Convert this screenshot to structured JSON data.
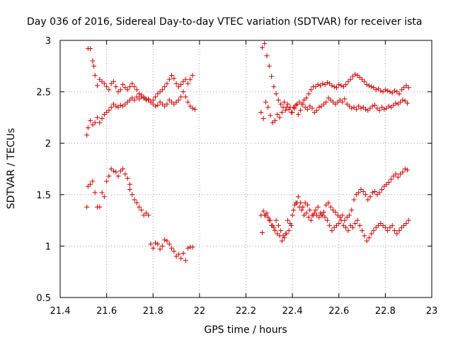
{
  "chart_data": {
    "type": "scatter",
    "title": "Day 036 of 2016, Sidereal Day-to-day VTEC variation (SDTVAR) for receiver ista",
    "xlabel": "GPS time / hours",
    "ylabel": "SDTVAR / TECUs",
    "xlim": [
      21.4,
      23.0
    ],
    "ylim": [
      0.5,
      3.0
    ],
    "xticks": [
      21.4,
      21.6,
      21.8,
      22.0,
      22.2,
      22.4,
      22.6,
      22.8,
      23.0
    ],
    "yticks": [
      0.5,
      1.0,
      1.5,
      2.0,
      2.5,
      3.0
    ],
    "xtick_labels": [
      "21.4",
      "21.6",
      "21.8",
      "22",
      "22.2",
      "22.4",
      "22.6",
      "22.8",
      "23"
    ],
    "ytick_labels": [
      "0.5",
      "1",
      "1.5",
      "2",
      "2.5",
      "3"
    ],
    "grid": true,
    "marker": "+",
    "color": "#cc0000",
    "series": [
      {
        "name": "segment-1-upper-a",
        "x": [
          21.52,
          21.53,
          21.54,
          21.545,
          21.55,
          21.56,
          21.57,
          21.58,
          21.59,
          21.6,
          21.61,
          21.62,
          21.63,
          21.64,
          21.65,
          21.66,
          21.67,
          21.68,
          21.69,
          21.7,
          21.71,
          21.72,
          21.73,
          21.74,
          21.75,
          21.76,
          21.77,
          21.78,
          21.79,
          21.8,
          21.81,
          21.82,
          21.83,
          21.84,
          21.85,
          21.86,
          21.87,
          21.88,
          21.89,
          21.9,
          21.91,
          21.92,
          21.93,
          21.94,
          21.95,
          21.96,
          21.97
        ],
        "y": [
          2.92,
          2.92,
          2.8,
          2.75,
          2.66,
          2.56,
          2.62,
          2.6,
          2.58,
          2.55,
          2.52,
          2.58,
          2.6,
          2.55,
          2.5,
          2.52,
          2.57,
          2.54,
          2.52,
          2.55,
          2.58,
          2.55,
          2.52,
          2.48,
          2.47,
          2.45,
          2.43,
          2.42,
          2.4,
          2.42,
          2.45,
          2.48,
          2.5,
          2.52,
          2.55,
          2.58,
          2.62,
          2.66,
          2.63,
          2.58,
          2.55,
          2.57,
          2.6,
          2.62,
          2.58,
          2.62,
          2.66
        ]
      },
      {
        "name": "segment-1-upper-b",
        "x": [
          21.515,
          21.52,
          21.53,
          21.54,
          21.55,
          21.56,
          21.57,
          21.58,
          21.59,
          21.6,
          21.61,
          21.62,
          21.63,
          21.64,
          21.65,
          21.66,
          21.67,
          21.68,
          21.69,
          21.7,
          21.71,
          21.72,
          21.73,
          21.74,
          21.75,
          21.76,
          21.77,
          21.78,
          21.79,
          21.8,
          21.81,
          21.82,
          21.83,
          21.84,
          21.85,
          21.86,
          21.87,
          21.88,
          21.89,
          21.9,
          21.91,
          21.92,
          21.93,
          21.94,
          21.95,
          21.96,
          21.97,
          21.98
        ],
        "y": [
          2.08,
          2.15,
          2.22,
          2.18,
          2.2,
          2.25,
          2.2,
          2.24,
          2.28,
          2.3,
          2.32,
          2.35,
          2.38,
          2.36,
          2.35,
          2.37,
          2.36,
          2.38,
          2.4,
          2.42,
          2.44,
          2.42,
          2.45,
          2.43,
          2.45,
          2.44,
          2.42,
          2.43,
          2.4,
          2.38,
          2.36,
          2.37,
          2.4,
          2.38,
          2.36,
          2.38,
          2.42,
          2.4,
          2.38,
          2.4,
          2.42,
          2.45,
          2.5,
          2.45,
          2.4,
          2.36,
          2.34,
          2.33
        ]
      },
      {
        "name": "segment-1-lower-a",
        "x": [
          21.52,
          21.53,
          21.54,
          21.55,
          21.56,
          21.57,
          21.58,
          21.59,
          21.6,
          21.61,
          21.62,
          21.63,
          21.64,
          21.65,
          21.66,
          21.67,
          21.68,
          21.69,
          21.7
        ],
        "y": [
          1.58,
          1.6,
          1.63,
          1.52,
          1.38,
          1.38,
          1.52,
          1.48,
          1.63,
          1.68,
          1.75,
          1.73,
          1.72,
          1.68,
          1.73,
          1.75,
          1.7,
          1.66,
          1.6
        ]
      },
      {
        "name": "segment-1-lower-b",
        "x": [
          21.515,
          21.7,
          21.71,
          21.72,
          21.73,
          21.74,
          21.75,
          21.76,
          21.77,
          21.78,
          21.79,
          21.8,
          21.81,
          21.82,
          21.83,
          21.84,
          21.85,
          21.86,
          21.87,
          21.88,
          21.89,
          21.9,
          21.91,
          21.92,
          21.93,
          21.94,
          21.95,
          21.96,
          21.97
        ],
        "y": [
          1.38,
          1.55,
          1.5,
          1.45,
          1.42,
          1.38,
          1.35,
          1.3,
          1.32,
          1.3,
          1.02,
          0.98,
          1.03,
          1.02,
          0.97,
          1.0,
          1.06,
          1.05,
          1.02,
          0.98,
          0.95,
          0.9,
          0.92,
          0.88,
          0.93,
          0.86,
          0.98,
          0.99,
          0.99
        ]
      },
      {
        "name": "segment-2-upper-a",
        "x": [
          22.27,
          22.28,
          22.29,
          22.3,
          22.31,
          22.32,
          22.33,
          22.34,
          22.35,
          22.36,
          22.37,
          22.38,
          22.39,
          22.4,
          22.41,
          22.42,
          22.43,
          22.44,
          22.45,
          22.46,
          22.47,
          22.48,
          22.49,
          22.5,
          22.51,
          22.52,
          22.53,
          22.54,
          22.55,
          22.56,
          22.57,
          22.58,
          22.59,
          22.6,
          22.61,
          22.62,
          22.63,
          22.64,
          22.65,
          22.66,
          22.67,
          22.68,
          22.69,
          22.7,
          22.71,
          22.72,
          22.73,
          22.74,
          22.75,
          22.76,
          22.77,
          22.78,
          22.79,
          22.8,
          22.81,
          22.82,
          22.83,
          22.84,
          22.85,
          22.86,
          22.87,
          22.88,
          22.89,
          22.9
        ],
        "y": [
          2.93,
          2.97,
          2.85,
          2.75,
          2.65,
          2.55,
          2.48,
          2.42,
          2.38,
          2.35,
          2.32,
          2.38,
          2.35,
          2.3,
          2.34,
          2.38,
          2.4,
          2.38,
          2.42,
          2.44,
          2.48,
          2.52,
          2.55,
          2.55,
          2.57,
          2.56,
          2.58,
          2.57,
          2.59,
          2.58,
          2.56,
          2.55,
          2.54,
          2.57,
          2.56,
          2.55,
          2.57,
          2.6,
          2.62,
          2.65,
          2.67,
          2.66,
          2.64,
          2.62,
          2.6,
          2.57,
          2.56,
          2.55,
          2.54,
          2.52,
          2.53,
          2.51,
          2.5,
          2.52,
          2.51,
          2.5,
          2.49,
          2.51,
          2.5,
          2.48,
          2.52,
          2.54,
          2.56,
          2.54
        ]
      },
      {
        "name": "segment-2-upper-b",
        "x": [
          22.265,
          22.275,
          22.285,
          22.295,
          22.305,
          22.315,
          22.325,
          22.335,
          22.345,
          22.355,
          22.365,
          22.375,
          22.385,
          22.395,
          22.405,
          22.415,
          22.425,
          22.435,
          22.445,
          22.455,
          22.465,
          22.475,
          22.485,
          22.495,
          22.505,
          22.515,
          22.525,
          22.535,
          22.545,
          22.555,
          22.565,
          22.575,
          22.585,
          22.595,
          22.605,
          22.615,
          22.625,
          22.635,
          22.645,
          22.655,
          22.665,
          22.675,
          22.685,
          22.695,
          22.705,
          22.715,
          22.725,
          22.735,
          22.745,
          22.755,
          22.765,
          22.775,
          22.785,
          22.795,
          22.805,
          22.815,
          22.825,
          22.835,
          22.845,
          22.855,
          22.865,
          22.875,
          22.885,
          22.895
        ],
        "y": [
          2.3,
          2.24,
          2.4,
          2.35,
          2.27,
          2.2,
          2.22,
          2.28,
          2.25,
          2.3,
          2.4,
          2.35,
          2.33,
          2.3,
          2.35,
          2.37,
          2.28,
          2.32,
          2.38,
          2.35,
          2.33,
          2.36,
          2.34,
          2.3,
          2.32,
          2.35,
          2.36,
          2.38,
          2.4,
          2.44,
          2.42,
          2.4,
          2.38,
          2.4,
          2.42,
          2.4,
          2.43,
          2.38,
          2.36,
          2.34,
          2.35,
          2.33,
          2.36,
          2.34,
          2.35,
          2.33,
          2.32,
          2.34,
          2.36,
          2.37,
          2.34,
          2.32,
          2.35,
          2.33,
          2.34,
          2.36,
          2.35,
          2.37,
          2.39,
          2.38,
          2.4,
          2.42,
          2.41,
          2.39
        ]
      },
      {
        "name": "segment-2-lower-a",
        "x": [
          22.265,
          22.275,
          22.285,
          22.295,
          22.305,
          22.315,
          22.325,
          22.335,
          22.345,
          22.355,
          22.365,
          22.375,
          22.385,
          22.395,
          22.405,
          22.415,
          22.425,
          22.435,
          22.445,
          22.455,
          22.465,
          22.475,
          22.485,
          22.495,
          22.505,
          22.515,
          22.525,
          22.535,
          22.545,
          22.555,
          22.565,
          22.575,
          22.585,
          22.595,
          22.605,
          22.615,
          22.625,
          22.635,
          22.645,
          22.655,
          22.665,
          22.675,
          22.685,
          22.695,
          22.705,
          22.715,
          22.725,
          22.735,
          22.745,
          22.755,
          22.765,
          22.775,
          22.785,
          22.795,
          22.805,
          22.815,
          22.825,
          22.835,
          22.845,
          22.855,
          22.865,
          22.875,
          22.885,
          22.895
        ],
        "y": [
          1.3,
          1.34,
          1.3,
          1.28,
          1.25,
          1.2,
          1.15,
          1.12,
          1.1,
          1.05,
          1.08,
          1.12,
          1.15,
          1.2,
          1.35,
          1.42,
          1.48,
          1.42,
          1.38,
          1.42,
          1.4,
          1.35,
          1.3,
          1.32,
          1.3,
          1.28,
          1.3,
          1.33,
          1.4,
          1.42,
          1.38,
          1.35,
          1.33,
          1.3,
          1.28,
          1.3,
          1.25,
          1.28,
          1.3,
          1.35,
          1.45,
          1.5,
          1.52,
          1.55,
          1.53,
          1.5,
          1.45,
          1.48,
          1.52,
          1.53,
          1.5,
          1.52,
          1.55,
          1.58,
          1.6,
          1.62,
          1.65,
          1.68,
          1.7,
          1.67,
          1.7,
          1.72,
          1.75,
          1.74
        ]
      },
      {
        "name": "segment-2-lower-b",
        "x": [
          22.27,
          22.28,
          22.29,
          22.3,
          22.31,
          22.32,
          22.33,
          22.34,
          22.35,
          22.36,
          22.37,
          22.38,
          22.39,
          22.4,
          22.41,
          22.42,
          22.43,
          22.44,
          22.45,
          22.46,
          22.47,
          22.48,
          22.49,
          22.5,
          22.51,
          22.52,
          22.53,
          22.54,
          22.55,
          22.56,
          22.57,
          22.58,
          22.59,
          22.6,
          22.61,
          22.62,
          22.63,
          22.64,
          22.65,
          22.66,
          22.67,
          22.68,
          22.69,
          22.7,
          22.71,
          22.72,
          22.73,
          22.74,
          22.75,
          22.76,
          22.77,
          22.78,
          22.79,
          22.8,
          22.81,
          22.82,
          22.83,
          22.84,
          22.85,
          22.86,
          22.87,
          22.88,
          22.89,
          22.9
        ],
        "y": [
          1.13,
          1.3,
          1.32,
          1.25,
          1.2,
          1.18,
          1.25,
          1.2,
          1.15,
          1.1,
          1.12,
          1.25,
          1.22,
          1.3,
          1.4,
          1.42,
          1.38,
          1.35,
          1.3,
          1.32,
          1.28,
          1.25,
          1.3,
          1.35,
          1.38,
          1.32,
          1.3,
          1.28,
          1.25,
          1.2,
          1.15,
          1.18,
          1.2,
          1.22,
          1.25,
          1.2,
          1.18,
          1.15,
          1.2,
          1.18,
          1.22,
          1.25,
          1.2,
          1.15,
          1.1,
          1.05,
          1.08,
          1.12,
          1.15,
          1.18,
          1.2,
          1.22,
          1.2,
          1.18,
          1.15,
          1.18,
          1.2,
          1.15,
          1.12,
          1.15,
          1.18,
          1.2,
          1.22,
          1.25
        ]
      }
    ]
  }
}
